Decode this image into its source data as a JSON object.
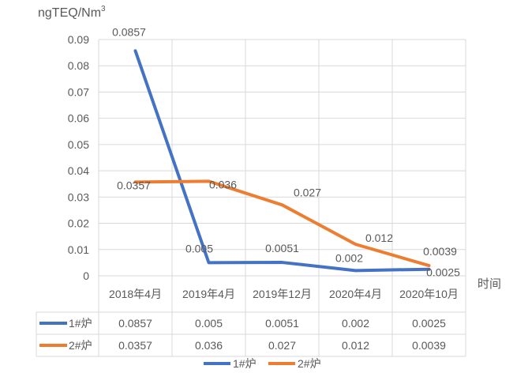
{
  "chart_data": {
    "type": "line",
    "ylabel": "ngTEQ/Nm",
    "ylabel_superscript": "3",
    "xlabel": "时间",
    "categories": [
      "2018年4月",
      "2019年4月",
      "2019年12月",
      "2020年4月",
      "2020年10月"
    ],
    "y_ticks": [
      "0",
      "0.01",
      "0.02",
      "0.03",
      "0.04",
      "0.05",
      "0.06",
      "0.07",
      "0.08",
      "0.09"
    ],
    "ylim": [
      0,
      0.09
    ],
    "grid": true,
    "legend_position": "bottom",
    "data_table": true,
    "series": [
      {
        "name": "1#炉",
        "color": "#4472C4",
        "values": [
          0.0857,
          0.005,
          0.0051,
          0.002,
          0.0025
        ],
        "labels": [
          "0.0857",
          "0.005",
          "0.0051",
          "0.002",
          "0.0025"
        ]
      },
      {
        "name": "2#炉",
        "color": "#ED7D31",
        "values": [
          0.0357,
          0.036,
          0.027,
          0.012,
          0.0039
        ],
        "labels": [
          "0.0357",
          "0.036",
          "0.027",
          "0.012",
          "0.0039"
        ]
      }
    ]
  }
}
